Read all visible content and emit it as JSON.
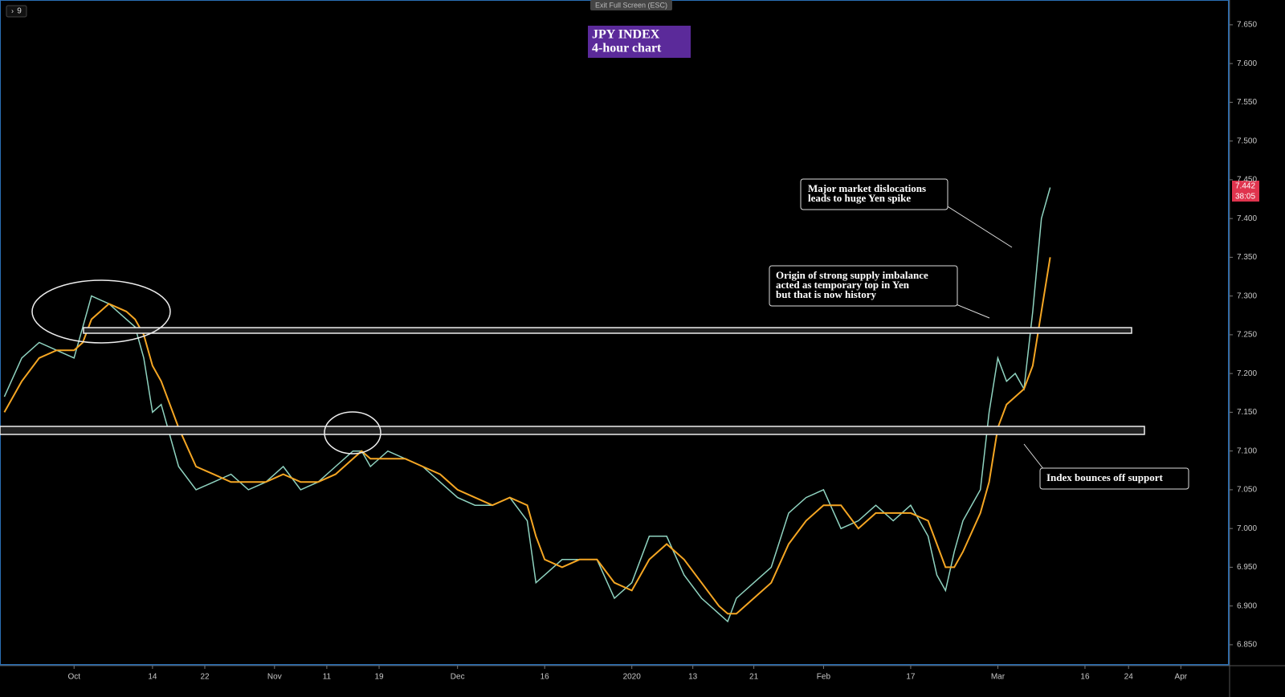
{
  "chart_data": {
    "type": "line",
    "title": "JPY INDEX",
    "subtitle": "4-hour chart",
    "x": [
      -8,
      -6,
      -4,
      -2,
      0,
      1,
      2,
      4,
      6,
      7,
      8,
      9,
      10,
      12,
      14,
      16,
      18,
      20,
      22,
      24,
      26,
      28,
      30,
      32,
      33,
      34,
      36,
      38,
      40,
      42,
      44,
      46,
      48,
      50,
      52,
      53,
      54,
      56,
      58,
      60,
      62,
      64,
      66,
      68,
      70,
      72,
      74,
      75,
      76,
      78,
      80,
      82,
      84,
      86,
      88,
      90,
      92,
      94,
      96,
      98,
      99,
      100,
      101,
      102,
      104,
      105,
      106,
      107,
      108,
      109,
      110,
      111,
      112
    ],
    "series": [
      {
        "color": "#8fd3c0",
        "values": [
          7.17,
          7.22,
          7.24,
          7.23,
          7.22,
          7.26,
          7.3,
          7.29,
          7.27,
          7.26,
          7.22,
          7.15,
          7.16,
          7.08,
          7.05,
          7.06,
          7.07,
          7.05,
          7.06,
          7.08,
          7.05,
          7.06,
          7.08,
          7.1,
          7.1,
          7.08,
          7.1,
          7.09,
          7.08,
          7.06,
          7.04,
          7.03,
          7.03,
          7.04,
          7.01,
          6.93,
          6.94,
          6.96,
          6.96,
          6.96,
          6.91,
          6.93,
          6.99,
          6.99,
          6.94,
          6.91,
          6.89,
          6.88,
          6.91,
          6.93,
          6.95,
          7.02,
          7.04,
          7.05,
          7.0,
          7.01,
          7.03,
          7.01,
          7.03,
          6.99,
          6.94,
          6.92,
          6.97,
          7.01,
          7.05,
          7.15,
          7.22,
          7.19,
          7.2,
          7.18,
          7.28,
          7.4,
          7.44
        ]
      },
      {
        "color": "#f5a623",
        "values": [
          7.15,
          7.19,
          7.22,
          7.23,
          7.23,
          7.24,
          7.27,
          7.29,
          7.28,
          7.27,
          7.25,
          7.21,
          7.19,
          7.13,
          7.08,
          7.07,
          7.06,
          7.06,
          7.06,
          7.07,
          7.06,
          7.06,
          7.07,
          7.09,
          7.1,
          7.09,
          7.09,
          7.09,
          7.08,
          7.07,
          7.05,
          7.04,
          7.03,
          7.04,
          7.03,
          6.99,
          6.96,
          6.95,
          6.96,
          6.96,
          6.93,
          6.92,
          6.96,
          6.98,
          6.96,
          6.93,
          6.9,
          6.89,
          6.89,
          6.91,
          6.93,
          6.98,
          7.01,
          7.03,
          7.03,
          7.0,
          7.02,
          7.02,
          7.02,
          7.01,
          6.98,
          6.95,
          6.95,
          6.97,
          7.02,
          7.06,
          7.13,
          7.16,
          7.17,
          7.18,
          7.21,
          7.28,
          7.35
        ]
      }
    ],
    "xlim": [
      -8.5,
      132.5
    ],
    "xticks": [
      {
        "value": 0,
        "label": "Oct"
      },
      {
        "value": 9,
        "label": "14"
      },
      {
        "value": 15,
        "label": "22"
      },
      {
        "value": 23,
        "label": "Nov"
      },
      {
        "value": 29,
        "label": "11"
      },
      {
        "value": 35,
        "label": "19"
      },
      {
        "value": 44,
        "label": "Dec"
      },
      {
        "value": 54,
        "label": "16"
      },
      {
        "value": 64,
        "label": "2020"
      },
      {
        "value": 71,
        "label": "13"
      },
      {
        "value": 78,
        "label": "21"
      },
      {
        "value": 86,
        "label": "Feb"
      },
      {
        "value": 96,
        "label": "17"
      },
      {
        "value": 106,
        "label": "Mar"
      },
      {
        "value": 116,
        "label": "16"
      },
      {
        "value": 121,
        "label": "24"
      },
      {
        "value": 127,
        "label": "Apr"
      }
    ],
    "ylim": [
      6.824,
      7.682
    ],
    "yticks": [
      {
        "value": 6.85,
        "label": "6.850"
      },
      {
        "value": 6.9,
        "label": "6.900"
      },
      {
        "value": 6.95,
        "label": "6.950"
      },
      {
        "value": 7.0,
        "label": "7.000"
      },
      {
        "value": 7.05,
        "label": "7.050"
      },
      {
        "value": 7.1,
        "label": "7.100"
      },
      {
        "value": 7.15,
        "label": "7.150"
      },
      {
        "value": 7.2,
        "label": "7.200"
      },
      {
        "value": 7.25,
        "label": "7.250"
      },
      {
        "value": 7.3,
        "label": "7.300"
      },
      {
        "value": 7.35,
        "label": "7.350"
      },
      {
        "value": 7.4,
        "label": "7.400"
      },
      {
        "value": 7.45,
        "label": "7.450"
      },
      {
        "value": 7.5,
        "label": "7.500"
      },
      {
        "value": 7.55,
        "label": "7.550"
      },
      {
        "value": 7.6,
        "label": "7.600"
      },
      {
        "value": 7.65,
        "label": "7.650"
      }
    ],
    "last_price_label": "7.442",
    "countdown": "38:05",
    "annotations": [
      [
        "Major market dislocations",
        "leads to huge Yen spike"
      ],
      [
        "Origin of strong supply imbalance",
        "acted as temporary top in Yen",
        "but that is now history"
      ],
      [
        "Index bounces off support"
      ]
    ],
    "ui": {
      "exit_button": "Exit Full Screen (ESC)",
      "interval_button": "9"
    }
  }
}
